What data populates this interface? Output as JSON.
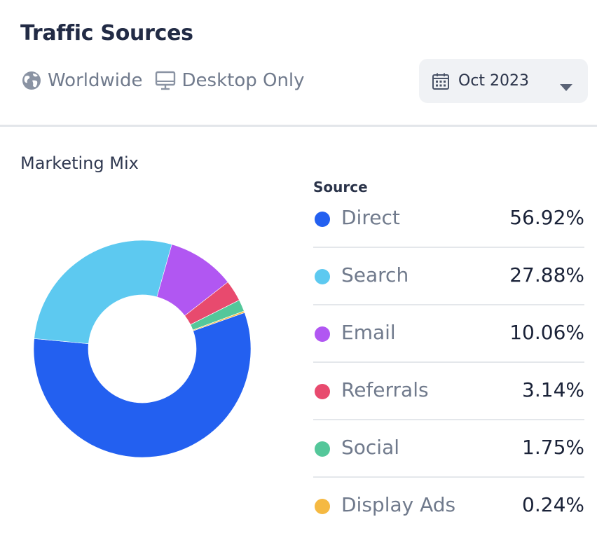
{
  "header": {
    "title": "Traffic Sources",
    "filters": [
      {
        "label": "Worldwide",
        "icon": "globe-icon"
      },
      {
        "label": "Desktop Only",
        "icon": "desktop-icon"
      }
    ],
    "date_select": {
      "value": "Oct 2023",
      "icon": "calendar-icon",
      "chevron": "chevron-down-icon"
    }
  },
  "chart_section": {
    "subtitle": "Marketing Mix",
    "legend_header": "Source"
  },
  "chart_data": {
    "type": "pie",
    "variant": "donut",
    "title": "Marketing Mix",
    "legend_title": "Source",
    "categories": [
      "Direct",
      "Search",
      "Email",
      "Referrals",
      "Social",
      "Display Ads"
    ],
    "values": [
      56.92,
      27.88,
      10.06,
      3.14,
      1.75,
      0.24
    ],
    "value_labels": [
      "56.92%",
      "27.88%",
      "10.06%",
      "3.14%",
      "1.75%",
      "0.24%"
    ],
    "colors": [
      "#2360f0",
      "#5dc9f0",
      "#b157f2",
      "#e84a6e",
      "#54c79a",
      "#f5b942"
    ],
    "unit": "%",
    "legend_position": "right"
  }
}
